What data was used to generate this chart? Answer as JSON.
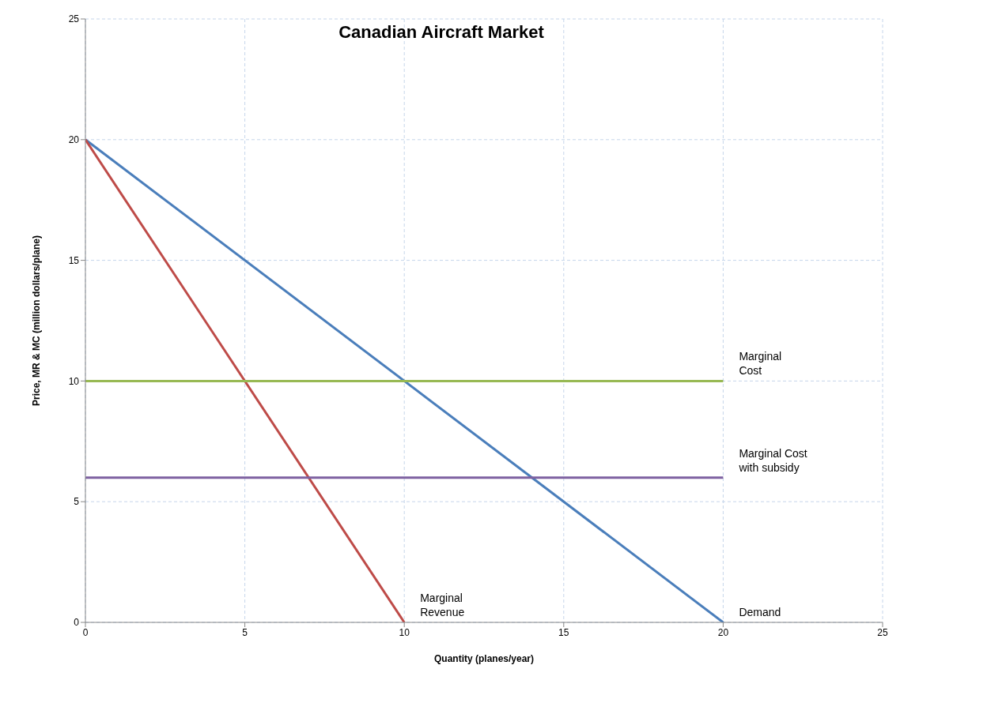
{
  "chart_data": {
    "type": "line",
    "title": "Canadian Aircraft Market",
    "xlabel": "Quantity (planes/year)",
    "ylabel": "Price, MR & MC (million dollars/plane)",
    "series": [
      {
        "name": "Demand",
        "color": "#4a7ebb",
        "x": [
          0,
          20
        ],
        "values": [
          20,
          0
        ]
      },
      {
        "name": "Marginal Revenue",
        "color": "#be4b48",
        "x": [
          0,
          10
        ],
        "values": [
          20,
          0
        ]
      },
      {
        "name": "Marginal Cost",
        "color": "#98b954",
        "x": [
          0,
          20
        ],
        "values": [
          10,
          10
        ]
      },
      {
        "name": "Marginal Cost with subsidy",
        "color": "#7d60a0",
        "x": [
          0,
          20
        ],
        "values": [
          6,
          6
        ]
      }
    ],
    "xlim": [
      0,
      25
    ],
    "xticks": [
      0,
      5,
      10,
      15,
      20,
      25
    ],
    "ylim": [
      0,
      25
    ],
    "yticks": [
      0,
      5,
      10,
      15,
      20,
      25
    ],
    "grid": true,
    "marker": "none",
    "line_style": "solid"
  }
}
